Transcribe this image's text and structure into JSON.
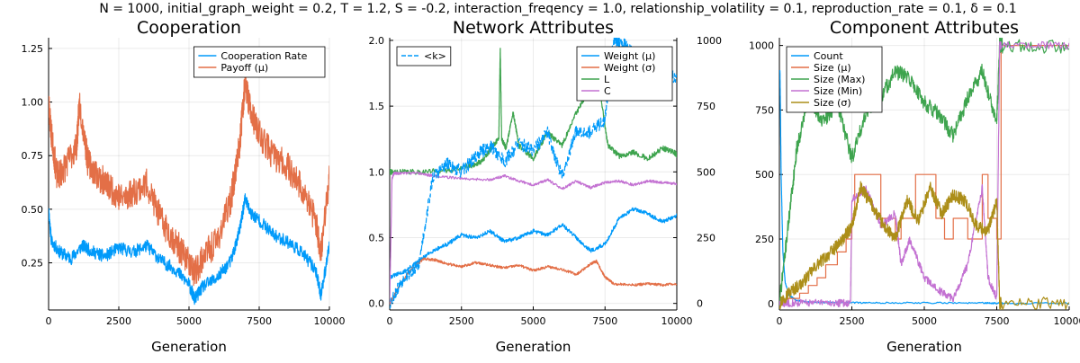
{
  "suptitle": "N = 1000, initial_graph_weight = 0.2, T = 1.2, S = -0.2, interaction_freqency = 1.0, relationship_volatility = 0.1, reproduction_rate = 0.1, δ = 0.1",
  "colors": {
    "blue": "#009AFA",
    "orange": "#E36F47",
    "green": "#3EA44E",
    "purple": "#C371D2",
    "gold": "#AC8E18"
  },
  "chart_data": [
    {
      "type": "line",
      "title": "Cooperation",
      "xlabel": "Generation",
      "xlim": [
        0,
        10000
      ],
      "ylim": [
        0.03,
        1.3
      ],
      "xticks": [
        0,
        2500,
        5000,
        7500,
        10000
      ],
      "yticks": [
        0.25,
        0.5,
        0.75,
        1.0,
        1.25
      ],
      "ytick_labels": [
        "0.25",
        "0.50",
        "0.75",
        "1.00",
        "1.25"
      ],
      "legend_position": "top-right",
      "grid": true,
      "series": [
        {
          "name": "Cooperation Rate",
          "color": "#009AFA",
          "noise": 0.03,
          "seed": 11,
          "x": [
            0,
            100,
            400,
            800,
            1200,
            1600,
            2000,
            2500,
            3000,
            3500,
            4000,
            4500,
            5000,
            5200,
            5500,
            6000,
            6500,
            6800,
            7000,
            7200,
            7500,
            8000,
            8500,
            9000,
            9500,
            9700,
            10000
          ],
          "y": [
            0.5,
            0.35,
            0.3,
            0.27,
            0.33,
            0.3,
            0.28,
            0.32,
            0.3,
            0.33,
            0.26,
            0.22,
            0.15,
            0.08,
            0.14,
            0.18,
            0.26,
            0.4,
            0.55,
            0.48,
            0.45,
            0.38,
            0.35,
            0.3,
            0.22,
            0.1,
            0.33
          ]
        },
        {
          "name": "Payoff (μ)",
          "color": "#E36F47",
          "noise": 0.07,
          "seed": 23,
          "x": [
            0,
            100,
            300,
            600,
            1000,
            1100,
            1400,
            1800,
            2200,
            2600,
            3000,
            3500,
            4000,
            4500,
            5000,
            5200,
            5500,
            6000,
            6500,
            6800,
            7000,
            7200,
            7500,
            8000,
            8500,
            9000,
            9500,
            9700,
            10000
          ],
          "y": [
            1.0,
            0.85,
            0.65,
            0.7,
            0.8,
            1.0,
            0.72,
            0.65,
            0.6,
            0.55,
            0.58,
            0.62,
            0.45,
            0.35,
            0.25,
            0.2,
            0.28,
            0.35,
            0.55,
            0.8,
            1.1,
            0.95,
            0.85,
            0.75,
            0.7,
            0.6,
            0.45,
            0.3,
            0.65
          ]
        }
      ]
    },
    {
      "type": "line",
      "title": "Network Attributes",
      "xlabel": "Generation",
      "xlim": [
        0,
        10000
      ],
      "ylim": [
        -0.05,
        2.02
      ],
      "xticks": [
        0,
        2500,
        5000,
        7500,
        10000
      ],
      "yticks": [
        0.0,
        0.5,
        1.0,
        1.5,
        2.0
      ],
      "ytick_labels": [
        "0.0",
        "0.5",
        "1.0",
        "1.5",
        "2.0"
      ],
      "secondary_ylim": [
        -25,
        1010
      ],
      "secondary_yticks": [
        0,
        250,
        500,
        750,
        1000
      ],
      "legend_position": "top-right",
      "secondary_legend_position": "top-left",
      "grid": true,
      "series": [
        {
          "name": "Weight (μ)",
          "color": "#009AFA",
          "noise": 0.015,
          "seed": 31,
          "x": [
            0,
            500,
            1000,
            1500,
            2000,
            2500,
            3000,
            3500,
            4000,
            4500,
            5000,
            5500,
            6000,
            6500,
            7000,
            7500,
            8000,
            8500,
            9000,
            9500,
            10000
          ],
          "y": [
            0.2,
            0.24,
            0.32,
            0.4,
            0.45,
            0.52,
            0.5,
            0.55,
            0.47,
            0.5,
            0.55,
            0.52,
            0.6,
            0.5,
            0.4,
            0.45,
            0.65,
            0.72,
            0.68,
            0.62,
            0.67
          ]
        },
        {
          "name": "Weight (σ)",
          "color": "#E36F47",
          "noise": 0.01,
          "seed": 37,
          "x": [
            0,
            300,
            700,
            1200,
            1600,
            2000,
            2500,
            3000,
            3500,
            4000,
            4500,
            5000,
            5500,
            6000,
            6500,
            7000,
            7200,
            7500,
            7800,
            8500,
            9000,
            9500,
            10000
          ],
          "y": [
            0.0,
            0.12,
            0.25,
            0.34,
            0.33,
            0.3,
            0.28,
            0.31,
            0.29,
            0.27,
            0.29,
            0.25,
            0.28,
            0.26,
            0.22,
            0.3,
            0.32,
            0.2,
            0.15,
            0.14,
            0.15,
            0.14,
            0.15
          ]
        },
        {
          "name": "L",
          "color": "#3EA44E",
          "noise": 0.02,
          "seed": 41,
          "x": [
            0,
            100,
            1000,
            2000,
            2900,
            3200,
            3450,
            3600,
            3800,
            3850,
            3900,
            4050,
            4300,
            4500,
            5000,
            5500,
            6000,
            6500,
            6900,
            7100,
            7300,
            7600,
            8000,
            8500,
            9000,
            9500,
            9900,
            10000
          ],
          "y": [
            1.0,
            1.0,
            1.0,
            1.01,
            1.05,
            1.08,
            1.15,
            1.2,
            1.25,
            1.95,
            1.25,
            1.18,
            1.45,
            1.2,
            1.1,
            1.3,
            1.2,
            1.45,
            1.6,
            1.85,
            1.65,
            1.2,
            1.12,
            1.15,
            1.1,
            1.18,
            1.15,
            1.13
          ]
        },
        {
          "name": "C",
          "color": "#C371D2",
          "noise": 0.01,
          "seed": 43,
          "x": [
            0,
            80,
            150,
            300,
            1000,
            1500,
            2500,
            3500,
            4000,
            4500,
            5000,
            5500,
            6000,
            6500,
            7000,
            7500,
            8000,
            8500,
            9000,
            9500,
            10000
          ],
          "y": [
            0.0,
            0.95,
            0.99,
            0.99,
            0.99,
            0.97,
            0.95,
            0.94,
            0.97,
            0.93,
            0.9,
            0.94,
            0.87,
            0.93,
            0.88,
            0.92,
            0.93,
            0.9,
            0.93,
            0.92,
            0.91
          ]
        },
        {
          "name": "<k>",
          "color": "#009AFA",
          "axis": "right",
          "dashed": true,
          "noise": 25,
          "seed": 53,
          "x": [
            0,
            500,
            1000,
            1500,
            2000,
            2500,
            3000,
            3500,
            4000,
            4500,
            5000,
            5500,
            6000,
            6500,
            7000,
            7500,
            7800,
            8000,
            8500,
            9000,
            9500,
            10000
          ],
          "y": [
            0,
            100,
            140,
            480,
            530,
            500,
            560,
            600,
            540,
            610,
            580,
            650,
            480,
            660,
            650,
            700,
            1000,
            1000,
            950,
            920,
            880,
            860
          ]
        }
      ]
    },
    {
      "type": "line",
      "title": "Component Attributes",
      "xlabel": "Generation",
      "xlim": [
        0,
        10000
      ],
      "ylim": [
        -25,
        1030
      ],
      "xticks": [
        0,
        2500,
        5000,
        7500,
        10000
      ],
      "yticks": [
        0,
        250,
        500,
        750,
        1000
      ],
      "ytick_labels": [
        "0",
        "250",
        "500",
        "750",
        "1000"
      ],
      "legend_position": "top-left",
      "grid": true,
      "series": [
        {
          "name": "Count",
          "color": "#009AFA",
          "noise": 3,
          "seed": 61,
          "x": [
            0,
            20,
            60,
            120,
            200,
            350,
            600,
            1000,
            2000,
            3000,
            5000,
            7000,
            7600,
            7700,
            10000
          ],
          "y": [
            900,
            900,
            500,
            200,
            80,
            30,
            12,
            6,
            4,
            3,
            3,
            2,
            1,
            1,
            1
          ]
        },
        {
          "name": "Size (μ)",
          "color": "#E36F47",
          "noise": 0,
          "seed": 0,
          "step": true,
          "x": [
            0,
            300,
            700,
            1000,
            1300,
            1600,
            2000,
            2300,
            2500,
            2600,
            3300,
            3500,
            4000,
            4200,
            4700,
            5400,
            5700,
            6000,
            6500,
            7000,
            7200,
            7500,
            7650,
            10000
          ],
          "y": [
            0,
            20,
            40,
            70,
            100,
            150,
            200,
            250,
            330,
            500,
            500,
            330,
            250,
            330,
            500,
            330,
            250,
            330,
            250,
            500,
            330,
            250,
            1000,
            1000
          ]
        },
        {
          "name": "Size (Max)",
          "color": "#3EA44E",
          "noise": 30,
          "seed": 71,
          "x": [
            0,
            300,
            600,
            1000,
            1500,
            2000,
            2500,
            3000,
            3500,
            4000,
            4500,
            5000,
            5500,
            6000,
            6500,
            7000,
            7500,
            7600,
            7700,
            10000
          ],
          "y": [
            0,
            300,
            600,
            800,
            700,
            780,
            560,
            750,
            800,
            900,
            870,
            780,
            730,
            650,
            800,
            900,
            700,
            1000,
            1000,
            1000
          ]
        },
        {
          "name": "Size (Min)",
          "color": "#C371D2",
          "noise": 15,
          "seed": 83,
          "x": [
            0,
            300,
            1000,
            2000,
            2450,
            2500,
            3000,
            3500,
            4000,
            4200,
            4500,
            5000,
            5500,
            6000,
            6500,
            7000,
            7200,
            7500,
            7600,
            7650,
            10000
          ],
          "y": [
            0,
            3,
            3,
            2,
            2,
            400,
            450,
            300,
            350,
            150,
            250,
            100,
            50,
            20,
            150,
            450,
            100,
            20,
            1000,
            1000,
            1000
          ]
        },
        {
          "name": "Size (σ)",
          "color": "#AC8E18",
          "noise": 25,
          "seed": 97,
          "x": [
            0,
            300,
            800,
            1300,
            1800,
            2200,
            2500,
            2800,
            3200,
            3600,
            4000,
            4400,
            4800,
            5200,
            5600,
            6000,
            6400,
            6800,
            7200,
            7500,
            7600,
            7650,
            10000
          ],
          "y": [
            0,
            40,
            80,
            150,
            200,
            250,
            300,
            450,
            380,
            300,
            250,
            400,
            320,
            450,
            350,
            420,
            400,
            300,
            280,
            400,
            0,
            0,
            0
          ]
        }
      ]
    }
  ]
}
